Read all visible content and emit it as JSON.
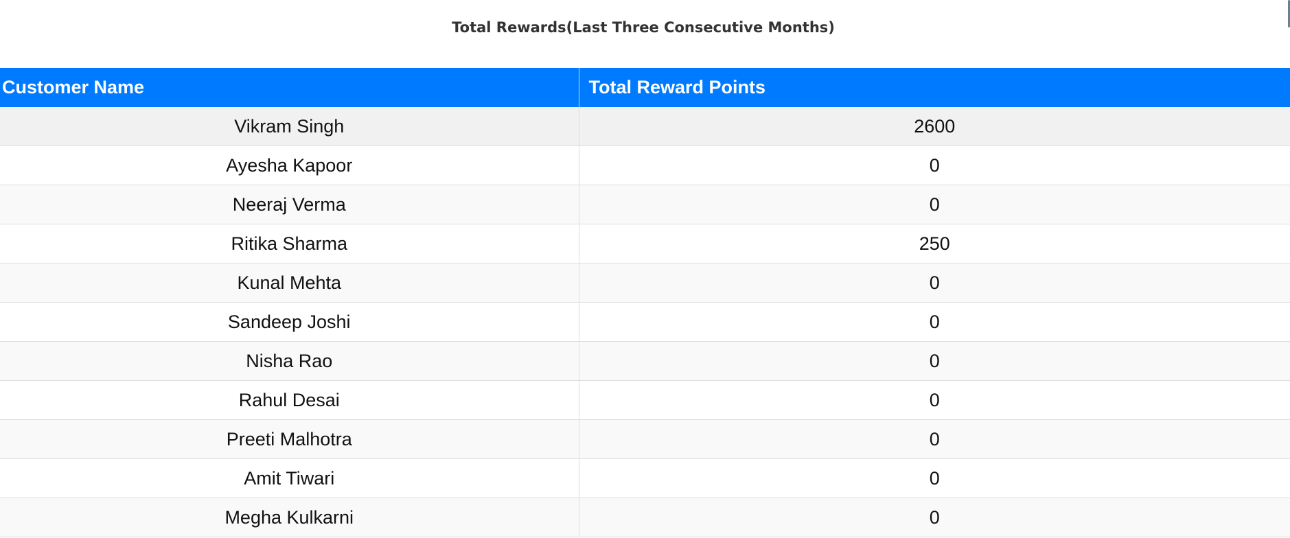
{
  "page": {
    "title": "Total Rewards(Last Three Consecutive Months)"
  },
  "table": {
    "headers": [
      "Customer Name",
      "Total Reward Points"
    ],
    "rows": [
      {
        "name": "Vikram Singh",
        "points": "2600"
      },
      {
        "name": "Ayesha Kapoor",
        "points": "0"
      },
      {
        "name": "Neeraj Verma",
        "points": "0"
      },
      {
        "name": "Ritika Sharma",
        "points": "250"
      },
      {
        "name": "Kunal Mehta",
        "points": "0"
      },
      {
        "name": "Sandeep Joshi",
        "points": "0"
      },
      {
        "name": "Nisha Rao",
        "points": "0"
      },
      {
        "name": "Rahul Desai",
        "points": "0"
      },
      {
        "name": "Preeti Malhotra",
        "points": "0"
      },
      {
        "name": "Amit Tiwari",
        "points": "0"
      },
      {
        "name": "Megha Kulkarni",
        "points": "0"
      }
    ]
  },
  "colors": {
    "header_bg": "#007bff",
    "header_text": "#ffffff",
    "title_text": "#333333",
    "row_odd": "#f9f9f9",
    "row_even": "#ffffff",
    "row_hover": "#f1f1f1"
  }
}
